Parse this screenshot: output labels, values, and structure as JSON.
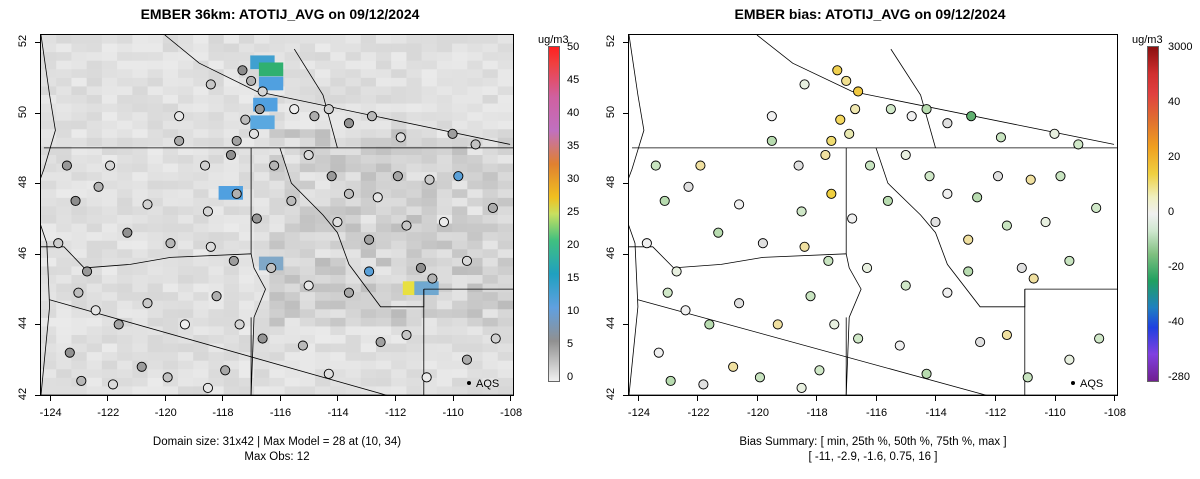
{
  "panels": [
    {
      "title": "EMBER 36km: ATOTIJ_AVG on 09/12/2024",
      "caption_line1": "Domain size: 31x42 | Max Model = 28 at (10, 34)",
      "caption_line2": "Max Obs: 12",
      "colorbar_unit": "ug/m3",
      "colorbar_ticks": [
        "50",
        "45",
        "40",
        "35",
        "30",
        "25",
        "20",
        "15",
        "10",
        "5",
        "0"
      ],
      "legend_label": "AQS"
    },
    {
      "title": "EMBER bias: ATOTIJ_AVG on 09/12/2024",
      "caption_line1": "Bias Summary: [ min, 25th %, 50th %, 75th %, max ]",
      "caption_line2": "[ -11,   -2.9,   -1.6,   0.75,   16 ]",
      "colorbar_unit": "ug/m3",
      "colorbar_ticks": [
        "3000",
        "40",
        "20",
        "0",
        "-20",
        "-40",
        "-280"
      ],
      "legend_label": "AQS"
    }
  ],
  "axes": {
    "x_ticks": [
      "-124",
      "-122",
      "-120",
      "-118",
      "-116",
      "-114",
      "-112",
      "-110",
      "-108"
    ],
    "y_ticks": [
      "42",
      "44",
      "46",
      "48",
      "50",
      "52"
    ]
  },
  "colors": {
    "background_gray": "#d9d9d9",
    "state_border": "#000000",
    "station_outline": "#000000"
  },
  "chart_data": [
    {
      "type": "heatmap",
      "title": "EMBER 36km: ATOTIJ_AVG on 09/12/2024",
      "xlabel": "",
      "ylabel": "",
      "xlim": [
        -124.3,
        -107.9
      ],
      "ylim": [
        42,
        52.2
      ],
      "colorbar_range": [
        0,
        50
      ],
      "hotspots": [
        {
          "lon": -116.5,
          "lat": 51.3,
          "value": 20
        },
        {
          "lon": -116.5,
          "lat": 50.3,
          "value": 15
        },
        {
          "lon": -117.6,
          "lat": 47.8,
          "value": 12
        },
        {
          "lon": -111,
          "lat": 45.1,
          "value": 28
        },
        {
          "lon": -116.2,
          "lat": 45.8,
          "value": 9
        }
      ],
      "max_obs": 12
    },
    {
      "type": "scatter",
      "title": "EMBER bias: ATOTIJ_AVG on 09/12/2024",
      "xlim": [
        -124.3,
        -107.9
      ],
      "ylim": [
        42,
        52.2
      ],
      "bias_summary": {
        "min": -11,
        "p25": -2.9,
        "p50": -1.6,
        "p75": 0.75,
        "max": 16
      }
    }
  ]
}
